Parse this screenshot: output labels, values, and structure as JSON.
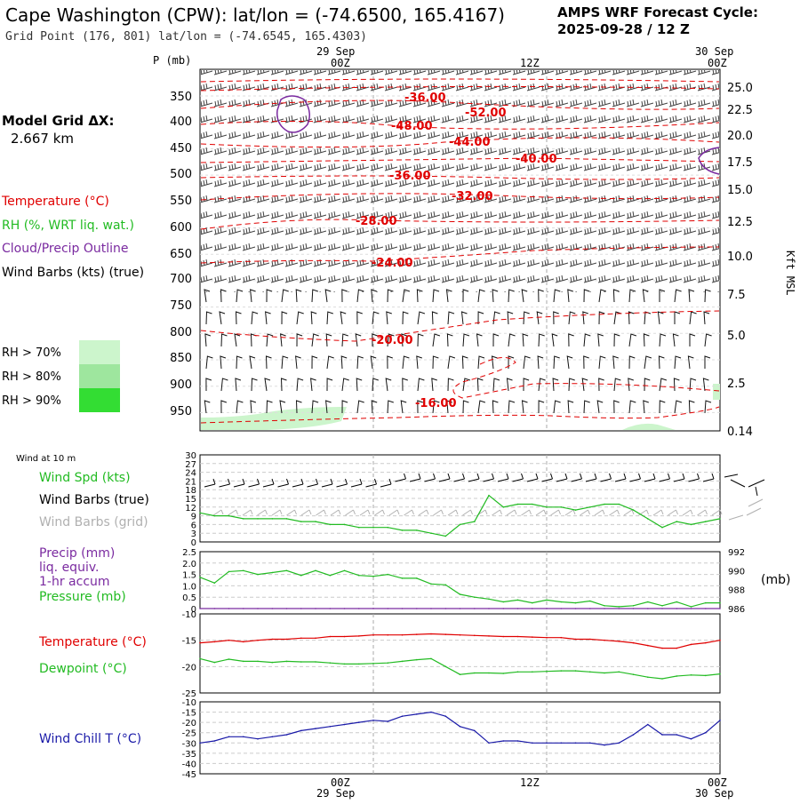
{
  "header": {
    "title": "Cape Washington (CPW):  lat/lon = (-74.6500, 165.4167)",
    "subtitle": "Grid Point (176, 801) lat/lon = (-74.6545, 165.4303)",
    "cycle_line1": "AMPS WRF Forecast Cycle:",
    "cycle_line2": "2025-09-28 / 12  Z"
  },
  "legend": {
    "grid_label": "Model Grid ΔX:",
    "grid_value": "2.667 km",
    "temperature": "Temperature (°C)",
    "rh": "RH (%, WRT liq. wat.)",
    "cloud": "Cloud/Precip Outline",
    "wind": "Wind Barbs (kts) (true)",
    "rh70": "RH > 70%",
    "rh80": "RH > 80%",
    "rh90": "RH > 90%"
  },
  "colors": {
    "temperature": "#e00000",
    "rh": "#22bb22",
    "cloud": "#7a2aa0",
    "wind": "#000000",
    "grid_wind": "#b0b0b0",
    "windchill": "#1a1aa8",
    "rh70": "#ccf5cc",
    "rh80": "#9ee69e",
    "rh90": "#33dd33"
  },
  "time_axis": {
    "date_top_left": "29 Sep",
    "date_top_right": "30 Sep",
    "date_bottom_left": "29 Sep",
    "date_bottom_right": "30 Sep",
    "ticks": [
      "00Z",
      "12Z",
      "00Z"
    ],
    "tick_hours": [
      12,
      24,
      36
    ],
    "range_hours": [
      0,
      36
    ]
  },
  "profile": {
    "p_label": "P (mb)",
    "pressure_ticks": [
      "350",
      "400",
      "450",
      "500",
      "550",
      "600",
      "650",
      "700",
      "750",
      "800",
      "850",
      "900",
      "950"
    ],
    "kft_ticks": [
      "25.0",
      "22.5",
      "20.0",
      "17.5",
      "15.0",
      "12.5",
      "10.0",
      "7.5",
      "5.0",
      "2.5",
      "0.14"
    ],
    "kft_label": "Kft MSL",
    "temp_labels": [
      "-36.00",
      "-52.00",
      "-48.00",
      "-44.00",
      "-40.00",
      "-36.00",
      "-32.00",
      "-28.00",
      "-24.00",
      "-20.00",
      "-16.00"
    ]
  },
  "panel_titles": {
    "wind10": "Wind at 10 m",
    "wind_spd": "Wind Spd (kts)",
    "wind_barbs_true": "Wind Barbs (true)",
    "wind_barbs_grid": "Wind Barbs (grid)",
    "precip": "Precip (mm)",
    "precip_2": "liq. equiv.",
    "precip_3": "1-hr accum",
    "pressure": "Pressure (mb)",
    "mb_unit": "(mb)",
    "temperature": "Temperature (°C)",
    "dewpoint": "Dewpoint (°C)",
    "windchill": "Wind Chill T (°C)"
  },
  "chart_data": [
    {
      "type": "line",
      "title": "Wind at 10 m",
      "ylabel": "Wind Spd (kts)",
      "ylim": [
        0,
        30
      ],
      "yticks": [
        "30",
        "27",
        "24",
        "21",
        "18",
        "15",
        "12",
        "9",
        "6",
        "3",
        "0"
      ],
      "x_hours": [
        0,
        1,
        2,
        3,
        4,
        5,
        6,
        7,
        8,
        9,
        10,
        11,
        12,
        13,
        14,
        15,
        16,
        17,
        18,
        19,
        20,
        21,
        22,
        23,
        24,
        25,
        26,
        27,
        28,
        29,
        30,
        31,
        32,
        33,
        34,
        35,
        36
      ],
      "series": [
        {
          "name": "Wind Spd (kts)",
          "values": [
            10,
            9,
            9,
            8,
            8,
            8,
            8,
            7,
            7,
            6,
            6,
            5,
            5,
            5,
            4,
            4,
            3,
            2,
            6,
            7,
            16,
            12,
            13,
            13,
            12,
            12,
            11,
            12,
            13,
            13,
            11,
            8,
            5,
            7,
            6,
            7,
            8
          ]
        }
      ]
    },
    {
      "type": "line",
      "title": "Precip / Pressure",
      "ylabel_left": "Precip (mm)",
      "ylabel_right": "Pressure (mb)",
      "ylim_left": [
        0,
        2.5
      ],
      "yticks_left": [
        "2.5",
        "2.0",
        "1.5",
        "1.0",
        "0.5",
        "0"
      ],
      "ylim_right": [
        986,
        992
      ],
      "yticks_right": [
        "992",
        "990",
        "988",
        "986"
      ],
      "x_hours": [
        0,
        1,
        2,
        3,
        4,
        5,
        6,
        7,
        8,
        9,
        10,
        11,
        12,
        13,
        14,
        15,
        16,
        17,
        18,
        19,
        20,
        21,
        22,
        23,
        24,
        25,
        26,
        27,
        28,
        29,
        30,
        31,
        32,
        33,
        34,
        35,
        36
      ],
      "series": [
        {
          "name": "Pressure (mb)",
          "axis": "right",
          "values": [
            989.3,
            988.7,
            989.9,
            990.0,
            989.6,
            989.8,
            990.0,
            989.5,
            990.0,
            989.5,
            990.0,
            989.5,
            989.4,
            989.6,
            989.2,
            989.2,
            988.6,
            988.5,
            987.5,
            987.2,
            987.0,
            986.7,
            986.9,
            986.6,
            986.9,
            986.7,
            986.6,
            986.8,
            986.3,
            986.2,
            986.3,
            986.7,
            986.3,
            986.7,
            986.2,
            986.6,
            986.6
          ]
        },
        {
          "name": "Precip (mm)",
          "axis": "left",
          "values": [
            0,
            0,
            0,
            0,
            0,
            0,
            0,
            0,
            0,
            0,
            0,
            0,
            0,
            0,
            0,
            0,
            0,
            0,
            0,
            0,
            0,
            0,
            0,
            0,
            0,
            0,
            0,
            0,
            0,
            0,
            0,
            0,
            0,
            0,
            0,
            0,
            0
          ]
        }
      ]
    },
    {
      "type": "line",
      "title": "Temperature / Dewpoint",
      "ylim": [
        -25,
        -10
      ],
      "yticks": [
        "-10",
        "-15",
        "-20",
        "-25"
      ],
      "x_hours": [
        0,
        1,
        2,
        3,
        4,
        5,
        6,
        7,
        8,
        9,
        10,
        11,
        12,
        13,
        14,
        15,
        16,
        17,
        18,
        19,
        20,
        21,
        22,
        23,
        24,
        25,
        26,
        27,
        28,
        29,
        30,
        31,
        32,
        33,
        34,
        35,
        36
      ],
      "series": [
        {
          "name": "Temperature (°C)",
          "values": [
            -15.5,
            -15.3,
            -15.0,
            -15.3,
            -15.0,
            -14.8,
            -14.8,
            -14.6,
            -14.6,
            -14.3,
            -14.3,
            -14.2,
            -14.0,
            -14.0,
            -14.0,
            -13.9,
            -13.8,
            -13.9,
            -14.0,
            -14.1,
            -14.2,
            -14.3,
            -14.3,
            -14.4,
            -14.5,
            -14.5,
            -14.8,
            -14.8,
            -15.0,
            -15.2,
            -15.5,
            -16.0,
            -16.5,
            -16.5,
            -15.8,
            -15.5,
            -15.0
          ]
        },
        {
          "name": "Dewpoint (°C)",
          "values": [
            -18.5,
            -19.2,
            -18.6,
            -19.0,
            -19.0,
            -19.2,
            -19.0,
            -19.1,
            -19.1,
            -19.3,
            -19.5,
            -19.5,
            -19.4,
            -19.3,
            -19.0,
            -18.7,
            -18.5,
            -20.0,
            -21.5,
            -21.2,
            -21.2,
            -21.3,
            -21.0,
            -21.0,
            -20.9,
            -20.8,
            -20.8,
            -21.0,
            -21.2,
            -21.0,
            -21.5,
            -22.0,
            -22.3,
            -21.8,
            -21.6,
            -21.7,
            -21.4
          ]
        }
      ]
    },
    {
      "type": "line",
      "title": "Wind Chill",
      "ylabel": "Wind Chill T (°C)",
      "ylim": [
        -45,
        -10
      ],
      "yticks": [
        "-10",
        "-15",
        "-20",
        "-25",
        "-30",
        "-35",
        "-40",
        "-45"
      ],
      "x_hours": [
        0,
        1,
        2,
        3,
        4,
        5,
        6,
        7,
        8,
        9,
        10,
        11,
        12,
        13,
        14,
        15,
        16,
        17,
        18,
        19,
        20,
        21,
        22,
        23,
        24,
        25,
        26,
        27,
        28,
        29,
        30,
        31,
        32,
        33,
        34,
        35,
        36
      ],
      "series": [
        {
          "name": "Wind Chill T (°C)",
          "values": [
            -30,
            -29,
            -27,
            -27,
            -28,
            -27,
            -26,
            -24,
            -23,
            -22,
            -21,
            -20,
            -19,
            -19.5,
            -17,
            -16,
            -15,
            -17,
            -22,
            -24,
            -30,
            -29,
            -29,
            -30,
            -30,
            -30,
            -30,
            -30,
            -31,
            -30,
            -26,
            -21,
            -26,
            -26,
            -28,
            -25,
            -19
          ]
        }
      ]
    }
  ]
}
